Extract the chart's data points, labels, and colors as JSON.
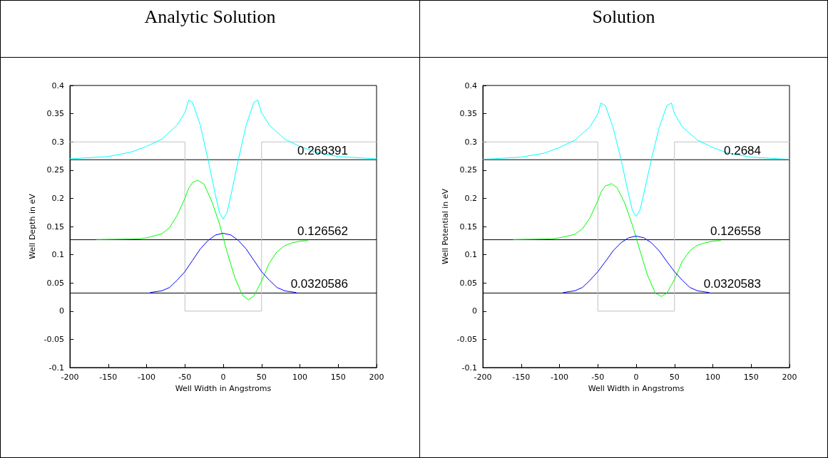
{
  "chart_data": [
    {
      "type": "line",
      "title": "Analytic Solution",
      "xlabel": "Well Width in Angstroms",
      "ylabel": "Well Depth in eV",
      "xlim": [
        -200,
        200
      ],
      "xticks": [
        -200,
        -150,
        -100,
        -50,
        0,
        50,
        100,
        150,
        200
      ],
      "ylim": [
        -0.1,
        0.4
      ],
      "yticks": [
        -0.1,
        -0.05,
        0,
        0.05,
        0.1,
        0.15,
        0.2,
        0.25,
        0.3,
        0.35,
        0.4
      ],
      "grid": false,
      "marker": "none",
      "line_style": "solid",
      "series": [
        {
          "color": "#c0c0c0",
          "x": [
            -200,
            -50,
            -50,
            50,
            50,
            200
          ],
          "values": [
            0.3,
            0.3,
            0,
            0,
            0.3,
            0.3
          ]
        },
        {
          "color": "#00ffff",
          "x": [
            -200,
            -150,
            -120,
            -100,
            -80,
            -60,
            -50,
            -45,
            -40,
            -30,
            -20,
            -10,
            -5,
            0,
            5,
            10,
            20,
            30,
            40,
            45,
            50,
            60,
            80,
            100,
            120,
            150,
            200
          ],
          "values": [
            0.27,
            0.274,
            0.282,
            0.292,
            0.305,
            0.33,
            0.352,
            0.374,
            0.37,
            0.33,
            0.27,
            0.205,
            0.175,
            0.163,
            0.175,
            0.205,
            0.27,
            0.33,
            0.37,
            0.374,
            0.352,
            0.33,
            0.305,
            0.292,
            0.282,
            0.274,
            0.27
          ]
        },
        {
          "color": "#00ff00",
          "x": [
            -165,
            -110,
            -100,
            -80,
            -70,
            -60,
            -50,
            -45,
            -40,
            -33,
            -25,
            -15,
            -5,
            0,
            5,
            15,
            25,
            33,
            40,
            50,
            60,
            70,
            80,
            90,
            100,
            110
          ],
          "values": [
            0.127,
            0.128,
            0.13,
            0.137,
            0.148,
            0.17,
            0.2,
            0.218,
            0.228,
            0.232,
            0.225,
            0.195,
            0.155,
            0.13,
            0.105,
            0.06,
            0.028,
            0.02,
            0.027,
            0.053,
            0.085,
            0.105,
            0.116,
            0.121,
            0.124,
            0.125
          ]
        },
        {
          "color": "#0000ff",
          "x": [
            -95,
            -80,
            -70,
            -60,
            -50,
            -40,
            -30,
            -20,
            -10,
            0,
            10,
            20,
            30,
            40,
            50,
            60,
            70,
            80,
            95
          ],
          "values": [
            0.033,
            0.036,
            0.042,
            0.055,
            0.07,
            0.09,
            0.11,
            0.125,
            0.135,
            0.138,
            0.135,
            0.125,
            0.11,
            0.09,
            0.07,
            0.055,
            0.042,
            0.036,
            0.033
          ]
        }
      ],
      "ref_lines": [
        {
          "axis": "y",
          "value": 0.268391,
          "label": "0.268391",
          "color": "#000000"
        },
        {
          "axis": "y",
          "value": 0.126562,
          "label": "0.126562",
          "color": "#000000"
        },
        {
          "axis": "y",
          "value": 0.0320586,
          "label": "0.0320586",
          "color": "#000000"
        }
      ]
    },
    {
      "type": "line",
      "title": "Solution",
      "xlabel": "Well Width in Angstroms",
      "ylabel": "Well Potential in eV",
      "xlim": [
        -200,
        200
      ],
      "xticks": [
        -200,
        -150,
        -100,
        -50,
        0,
        50,
        100,
        150,
        200
      ],
      "ylim": [
        -0.1,
        0.4
      ],
      "yticks": [
        -0.1,
        -0.05,
        0,
        0.05,
        0.1,
        0.15,
        0.2,
        0.25,
        0.3,
        0.35,
        0.4
      ],
      "grid": false,
      "marker": "none",
      "line_style": "solid",
      "series": [
        {
          "color": "#c0c0c0",
          "x": [
            -200,
            -50,
            -50,
            50,
            50,
            200
          ],
          "values": [
            0.3,
            0.3,
            0,
            0,
            0.3,
            0.3
          ]
        },
        {
          "color": "#00ffff",
          "x": [
            -200,
            -150,
            -120,
            -100,
            -80,
            -60,
            -50,
            -46,
            -40,
            -30,
            -20,
            -10,
            -5,
            0,
            5,
            10,
            20,
            30,
            40,
            46,
            50,
            60,
            80,
            100,
            120,
            150,
            200
          ],
          "values": [
            0.269,
            0.273,
            0.28,
            0.29,
            0.303,
            0.327,
            0.35,
            0.369,
            0.364,
            0.325,
            0.27,
            0.208,
            0.179,
            0.168,
            0.179,
            0.208,
            0.27,
            0.325,
            0.364,
            0.369,
            0.35,
            0.327,
            0.303,
            0.29,
            0.28,
            0.273,
            0.269
          ]
        },
        {
          "color": "#00ff00",
          "x": [
            -160,
            -110,
            -100,
            -80,
            -70,
            -60,
            -50,
            -45,
            -40,
            -32,
            -25,
            -15,
            -5,
            0,
            5,
            15,
            25,
            33,
            40,
            50,
            60,
            70,
            80,
            90,
            100,
            110
          ],
          "values": [
            0.127,
            0.128,
            0.13,
            0.136,
            0.146,
            0.166,
            0.196,
            0.213,
            0.222,
            0.226,
            0.219,
            0.192,
            0.153,
            0.13,
            0.107,
            0.063,
            0.032,
            0.026,
            0.032,
            0.056,
            0.088,
            0.107,
            0.117,
            0.121,
            0.124,
            0.125
          ]
        },
        {
          "color": "#0000ff",
          "x": [
            -95,
            -80,
            -70,
            -60,
            -50,
            -40,
            -30,
            -20,
            -10,
            0,
            10,
            20,
            30,
            40,
            50,
            60,
            70,
            80,
            95
          ],
          "values": [
            0.033,
            0.036,
            0.042,
            0.055,
            0.07,
            0.088,
            0.107,
            0.121,
            0.13,
            0.133,
            0.13,
            0.121,
            0.107,
            0.088,
            0.07,
            0.055,
            0.042,
            0.036,
            0.033
          ]
        }
      ],
      "ref_lines": [
        {
          "axis": "y",
          "value": 0.2684,
          "label": "0.2684",
          "color": "#000000"
        },
        {
          "axis": "y",
          "value": 0.126558,
          "label": "0.126558",
          "color": "#000000"
        },
        {
          "axis": "y",
          "value": 0.0320583,
          "label": "0.0320583",
          "color": "#000000"
        }
      ]
    }
  ]
}
